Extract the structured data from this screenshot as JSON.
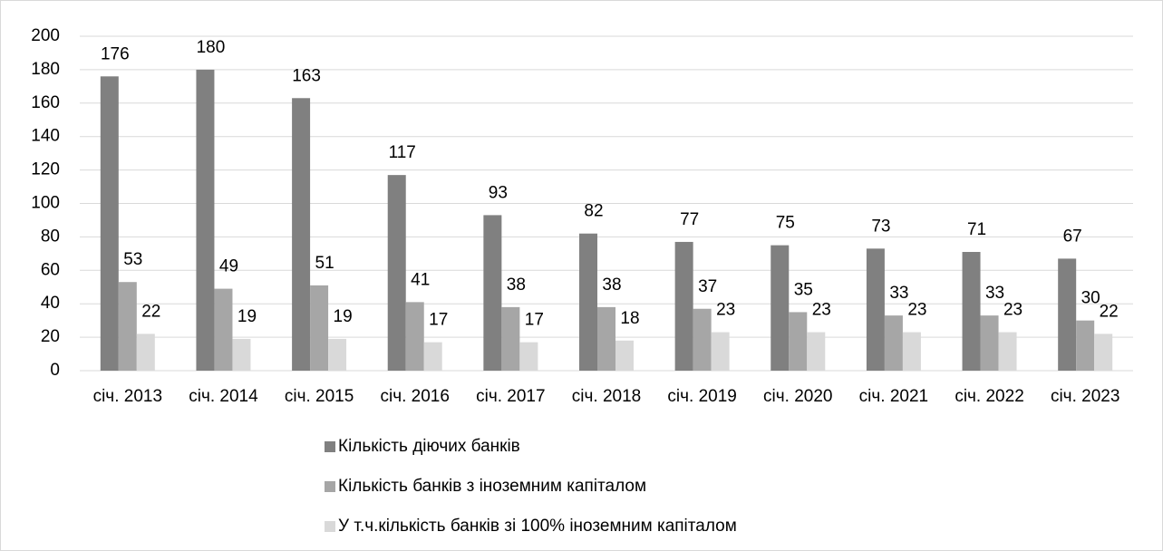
{
  "chart_data": {
    "type": "bar",
    "categories": [
      "січ. 2013",
      "січ. 2014",
      "січ. 2015",
      "січ. 2016",
      "січ. 2017",
      "січ. 2018",
      "січ. 2019",
      "січ. 2020",
      "січ. 2021",
      "січ. 2022",
      "січ. 2023"
    ],
    "series": [
      {
        "name": "Кількість діючих банків",
        "color": "#808080",
        "values": [
          176,
          180,
          163,
          117,
          93,
          82,
          77,
          75,
          73,
          71,
          67
        ]
      },
      {
        "name": "Кількість банків з іноземним капіталом",
        "color": "#a6a6a6",
        "values": [
          53,
          49,
          51,
          41,
          38,
          38,
          37,
          35,
          33,
          33,
          30
        ]
      },
      {
        "name": "У т.ч.кількість банків зі 100% іноземним капіталом",
        "color": "#d9d9d9",
        "values": [
          22,
          19,
          19,
          17,
          17,
          18,
          23,
          23,
          23,
          23,
          22
        ]
      }
    ],
    "ylim": [
      0,
      200
    ],
    "yticks": [
      0,
      20,
      40,
      60,
      80,
      100,
      120,
      140,
      160,
      180,
      200
    ],
    "grid": true,
    "legend": "bottom"
  }
}
